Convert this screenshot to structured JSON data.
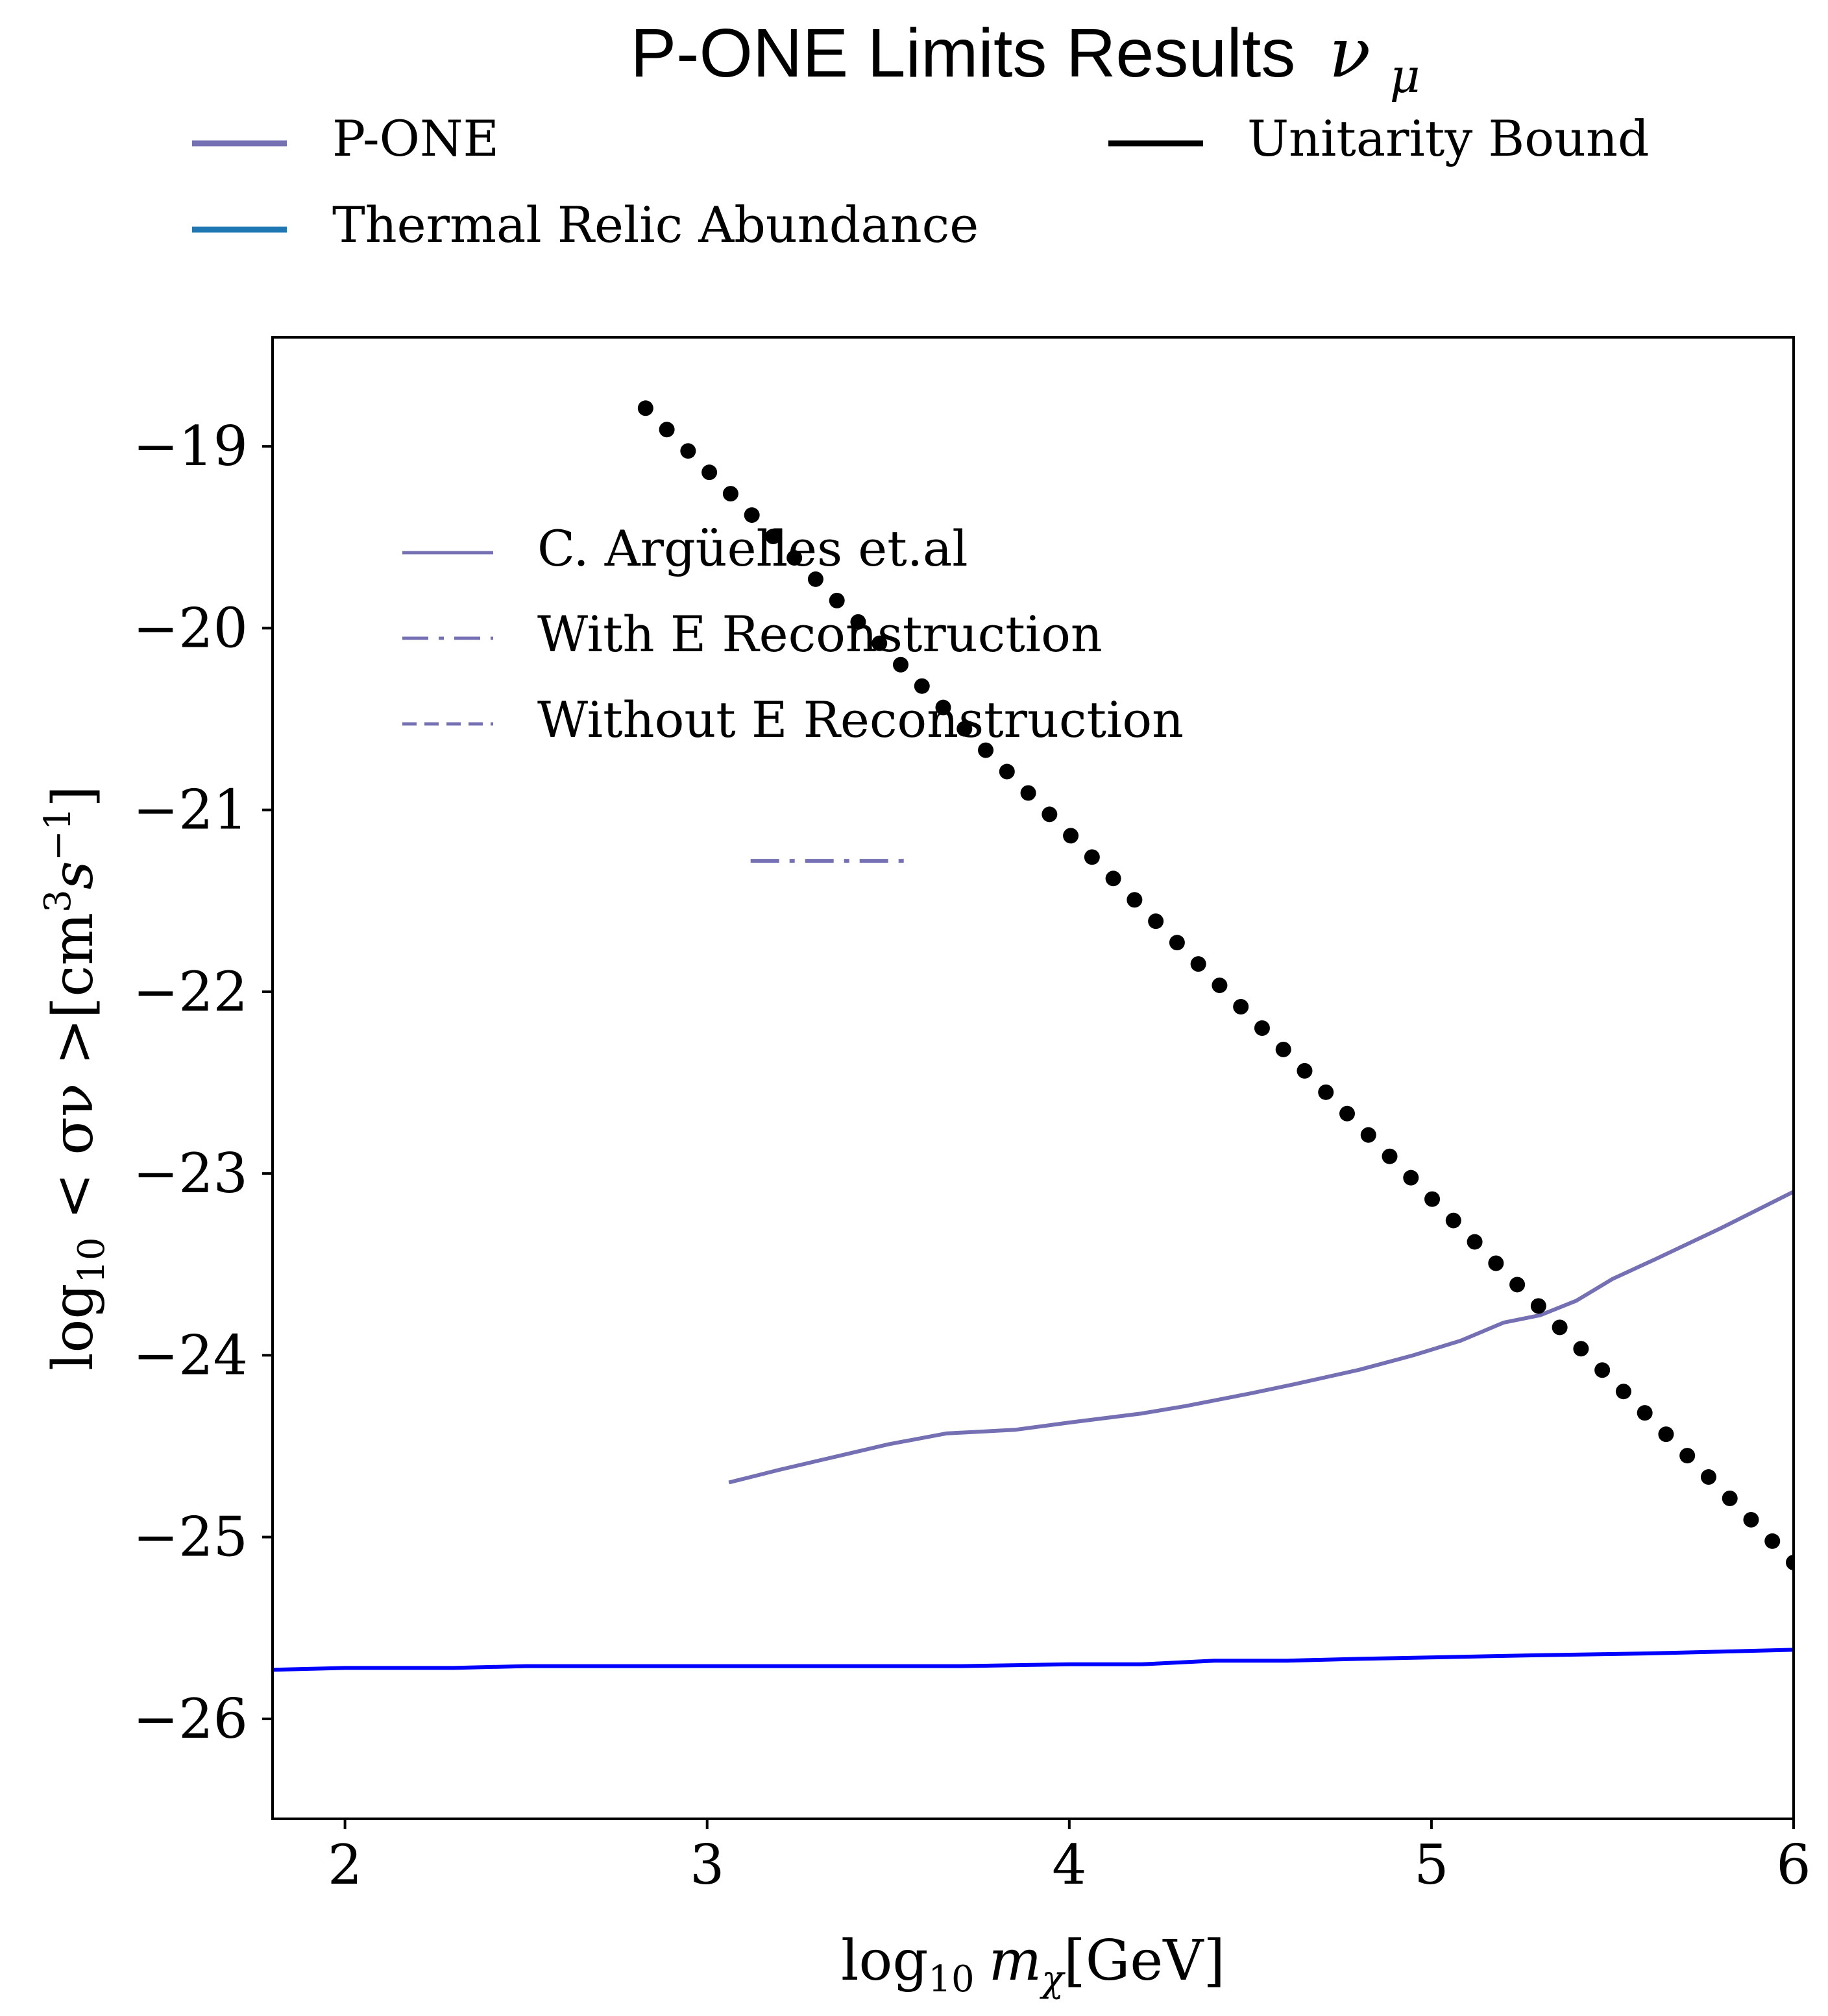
{
  "chart_data": {
    "type": "line",
    "title": "P-ONE Limits Results",
    "title_symbol": "ν",
    "title_symbol_sub": "μ",
    "xlabel_prefix": "log",
    "xlabel_sub": "10",
    "xlabel_var": "m",
    "xlabel_var_sub": "χ",
    "xlabel_unit": "[GeV]",
    "ylabel_prefix": "log",
    "ylabel_sub": "10",
    "ylabel_body": " < σν >[cm",
    "ylabel_sup1": "3",
    "ylabel_s": "s",
    "ylabel_sup2": "−1",
    "ylabel_end": "]",
    "xlim": [
      1.8,
      6.0
    ],
    "ylim": [
      -26.55,
      -18.4
    ],
    "xticks": [
      2,
      3,
      4,
      5,
      6
    ],
    "xtick_labels": [
      "2",
      "3",
      "4",
      "5",
      "6"
    ],
    "yticks": [
      -19,
      -20,
      -21,
      -22,
      -23,
      -24,
      -25,
      -26
    ],
    "ytick_labels": [
      "−19",
      "−20",
      "−21",
      "−22",
      "−23",
      "−24",
      "−25",
      "−26"
    ],
    "grid": false,
    "colors": {
      "pone": "#7570b3",
      "thermal_legend": "#1f77b4",
      "thermal_line": "#0000ff",
      "unitarity": "#000000"
    },
    "legend_top": [
      {
        "label": "P-ONE",
        "color": "#7570b3"
      },
      {
        "label": "Unitarity Bound",
        "color": "#000000"
      },
      {
        "label": "Thermal Relic Abundance",
        "color": "#1f77b4"
      }
    ],
    "legend_inner": [
      {
        "label": "C. Argüelles et.al",
        "style": "solid"
      },
      {
        "label": "With E Reconstruction",
        "style": "dashdot"
      },
      {
        "label": "Without E Reconstruction",
        "style": "dashed"
      }
    ],
    "series": [
      {
        "name": "C. Argüelles et.al",
        "style": "solid",
        "color": "#7570b3",
        "points": [
          [
            3.06,
            -24.7
          ],
          [
            3.2,
            -24.63
          ],
          [
            3.35,
            -24.56
          ],
          [
            3.5,
            -24.49
          ],
          [
            3.66,
            -24.43
          ],
          [
            3.85,
            -24.41
          ],
          [
            4.0,
            -24.37
          ],
          [
            4.2,
            -24.32
          ],
          [
            4.32,
            -24.28
          ],
          [
            4.5,
            -24.21
          ],
          [
            4.62,
            -24.16
          ],
          [
            4.8,
            -24.08
          ],
          [
            4.95,
            -24.0
          ],
          [
            5.08,
            -23.92
          ],
          [
            5.2,
            -23.82
          ],
          [
            5.3,
            -23.78
          ],
          [
            5.4,
            -23.7
          ],
          [
            5.5,
            -23.58
          ],
          [
            5.62,
            -23.47
          ],
          [
            5.8,
            -23.3
          ],
          [
            6.0,
            -23.1
          ]
        ]
      },
      {
        "name": "With E Reconstruction",
        "style": "dashdot",
        "color": "#7570b3",
        "points": [
          [
            3.12,
            -21.28
          ],
          [
            3.56,
            -21.28
          ]
        ]
      },
      {
        "name": "Thermal Relic Abundance",
        "style": "solid",
        "color": "#0000ff",
        "points": [
          [
            1.8,
            -25.73
          ],
          [
            2.0,
            -25.72
          ],
          [
            2.3,
            -25.72
          ],
          [
            2.5,
            -25.71
          ],
          [
            3.0,
            -25.71
          ],
          [
            3.7,
            -25.71
          ],
          [
            4.0,
            -25.7
          ],
          [
            4.2,
            -25.7
          ],
          [
            4.4,
            -25.68
          ],
          [
            4.6,
            -25.68
          ],
          [
            4.8,
            -25.67
          ],
          [
            5.05,
            -25.66
          ],
          [
            5.3,
            -25.65
          ],
          [
            5.6,
            -25.64
          ],
          [
            5.8,
            -25.63
          ],
          [
            6.0,
            -25.62
          ]
        ]
      },
      {
        "name": "Unitarity Bound",
        "style": "dotted",
        "color": "#000000",
        "points": [
          [
            2.83,
            -18.79
          ],
          [
            6.0,
            -25.14
          ]
        ]
      }
    ]
  }
}
